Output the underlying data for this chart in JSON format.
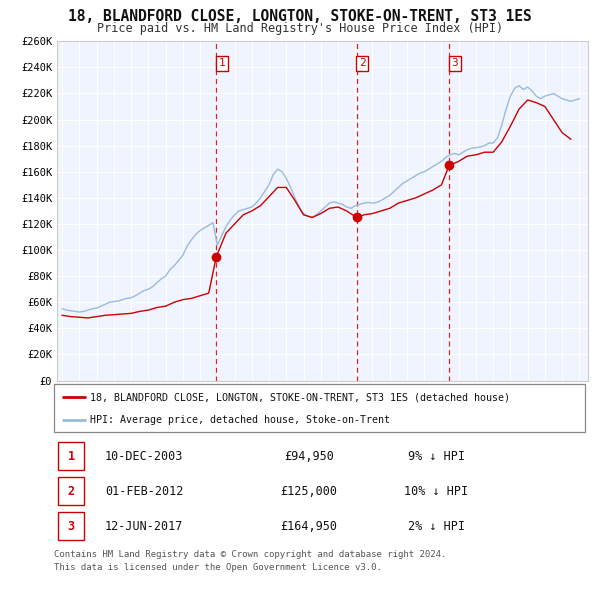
{
  "title": "18, BLANDFORD CLOSE, LONGTON, STOKE-ON-TRENT, ST3 1ES",
  "subtitle": "Price paid vs. HM Land Registry's House Price Index (HPI)",
  "plot_bg": "#f0f4ff",
  "grid_color": "#ffffff",
  "red_line_color": "#cc0000",
  "blue_line_color": "#99bbdd",
  "ylim": [
    0,
    260000
  ],
  "yticks": [
    0,
    20000,
    40000,
    60000,
    80000,
    100000,
    120000,
    140000,
    160000,
    180000,
    200000,
    220000,
    240000,
    260000
  ],
  "ytick_labels": [
    "£0",
    "£20K",
    "£40K",
    "£60K",
    "£80K",
    "£100K",
    "£120K",
    "£140K",
    "£160K",
    "£180K",
    "£200K",
    "£220K",
    "£240K",
    "£260K"
  ],
  "xmin": 1994.7,
  "xmax": 2025.5,
  "xticks": [
    1995,
    1996,
    1997,
    1998,
    1999,
    2000,
    2001,
    2002,
    2003,
    2004,
    2005,
    2006,
    2007,
    2008,
    2009,
    2010,
    2011,
    2012,
    2013,
    2014,
    2015,
    2016,
    2017,
    2018,
    2019,
    2020,
    2021,
    2022,
    2023,
    2024,
    2025
  ],
  "sale_dates": [
    2003.94,
    2012.08,
    2017.45
  ],
  "sale_prices": [
    94950,
    125000,
    164950
  ],
  "sale_labels": [
    "1",
    "2",
    "3"
  ],
  "vline_dates": [
    2003.94,
    2012.08,
    2017.45
  ],
  "legend_red": "18, BLANDFORD CLOSE, LONGTON, STOKE-ON-TRENT, ST3 1ES (detached house)",
  "legend_blue": "HPI: Average price, detached house, Stoke-on-Trent",
  "table_rows": [
    {
      "num": "1",
      "date": "10-DEC-2003",
      "price": "£94,950",
      "pct": "9% ↓ HPI"
    },
    {
      "num": "2",
      "date": "01-FEB-2012",
      "price": "£125,000",
      "pct": "10% ↓ HPI"
    },
    {
      "num": "3",
      "date": "12-JUN-2017",
      "price": "£164,950",
      "pct": "2% ↓ HPI"
    }
  ],
  "footer1": "Contains HM Land Registry data © Crown copyright and database right 2024.",
  "footer2": "This data is licensed under the Open Government Licence v3.0.",
  "hpi_x": [
    1995.0,
    1995.25,
    1995.5,
    1995.75,
    1996.0,
    1996.25,
    1996.5,
    1996.75,
    1997.0,
    1997.25,
    1997.5,
    1997.75,
    1998.0,
    1998.25,
    1998.5,
    1998.75,
    1999.0,
    1999.25,
    1999.5,
    1999.75,
    2000.0,
    2000.25,
    2000.5,
    2000.75,
    2001.0,
    2001.25,
    2001.5,
    2001.75,
    2002.0,
    2002.25,
    2002.5,
    2002.75,
    2003.0,
    2003.25,
    2003.5,
    2003.75,
    2004.0,
    2004.25,
    2004.5,
    2004.75,
    2005.0,
    2005.25,
    2005.5,
    2005.75,
    2006.0,
    2006.25,
    2006.5,
    2006.75,
    2007.0,
    2007.25,
    2007.5,
    2007.75,
    2008.0,
    2008.25,
    2008.5,
    2008.75,
    2009.0,
    2009.25,
    2009.5,
    2009.75,
    2010.0,
    2010.25,
    2010.5,
    2010.75,
    2011.0,
    2011.25,
    2011.5,
    2011.75,
    2012.0,
    2012.25,
    2012.5,
    2012.75,
    2013.0,
    2013.25,
    2013.5,
    2013.75,
    2014.0,
    2014.25,
    2014.5,
    2014.75,
    2015.0,
    2015.25,
    2015.5,
    2015.75,
    2016.0,
    2016.25,
    2016.5,
    2016.75,
    2017.0,
    2017.25,
    2017.5,
    2017.75,
    2018.0,
    2018.25,
    2018.5,
    2018.75,
    2019.0,
    2019.25,
    2019.5,
    2019.75,
    2020.0,
    2020.25,
    2020.5,
    2020.75,
    2021.0,
    2021.25,
    2021.5,
    2021.75,
    2022.0,
    2022.25,
    2022.5,
    2022.75,
    2023.0,
    2023.25,
    2023.5,
    2023.75,
    2024.0,
    2024.25,
    2024.5,
    2024.75,
    2025.0
  ],
  "hpi_y": [
    55000,
    54000,
    53500,
    53000,
    52500,
    53000,
    54000,
    55000,
    55500,
    57000,
    58500,
    60000,
    60500,
    61000,
    62000,
    63000,
    63500,
    65000,
    67000,
    69000,
    70000,
    72000,
    75000,
    78000,
    80000,
    85000,
    88000,
    92000,
    96000,
    103000,
    108000,
    112000,
    115000,
    117000,
    119000,
    121000,
    103800,
    111000,
    118000,
    123000,
    127000,
    130000,
    131000,
    132000,
    133000,
    136000,
    140000,
    145000,
    150000,
    158000,
    162000,
    160000,
    155000,
    148000,
    140000,
    133000,
    128000,
    126000,
    125000,
    127000,
    130000,
    133000,
    136000,
    137000,
    136000,
    135000,
    133000,
    132000,
    134000,
    135000,
    136000,
    136500,
    136000,
    136500,
    138000,
    140000,
    142000,
    145000,
    148000,
    151000,
    153000,
    155000,
    157000,
    159000,
    160000,
    162000,
    164000,
    166000,
    168000,
    171000,
    173000,
    174000,
    173000,
    175000,
    177000,
    178000,
    178500,
    179000,
    180000,
    182000,
    182000,
    186000,
    196000,
    208000,
    218000,
    224000,
    226000,
    223000,
    225000,
    222000,
    218000,
    216000,
    218000,
    219000,
    220000,
    218000,
    216000,
    215000,
    214000,
    215000,
    216000
  ],
  "red_x": [
    1995.0,
    1995.5,
    1996.0,
    1996.5,
    1997.0,
    1997.5,
    1998.0,
    1998.5,
    1999.0,
    1999.5,
    2000.0,
    2000.5,
    2001.0,
    2001.5,
    2002.0,
    2002.5,
    2003.0,
    2003.5,
    2003.94,
    2004.5,
    2005.0,
    2005.5,
    2006.0,
    2006.5,
    2007.0,
    2007.5,
    2008.0,
    2008.5,
    2009.0,
    2009.5,
    2010.0,
    2010.5,
    2011.0,
    2011.5,
    2012.08,
    2012.5,
    2013.0,
    2013.5,
    2014.0,
    2014.5,
    2015.0,
    2015.5,
    2016.0,
    2016.5,
    2017.0,
    2017.45,
    2018.0,
    2018.5,
    2019.0,
    2019.5,
    2020.0,
    2020.5,
    2021.0,
    2021.5,
    2022.0,
    2022.5,
    2023.0,
    2023.5,
    2024.0,
    2024.5
  ],
  "red_y": [
    50000,
    49000,
    48500,
    48000,
    49000,
    50000,
    50500,
    51000,
    51500,
    53000,
    54000,
    56000,
    57000,
    60000,
    62000,
    63000,
    65000,
    67000,
    94950,
    113000,
    120000,
    127000,
    130000,
    134000,
    141000,
    148000,
    148000,
    138000,
    127000,
    125000,
    128000,
    132000,
    133000,
    130000,
    125000,
    127000,
    128000,
    130000,
    132000,
    136000,
    138000,
    140000,
    143000,
    146000,
    150000,
    164950,
    168000,
    172000,
    173000,
    175000,
    175000,
    183000,
    195000,
    208000,
    215000,
    213000,
    210000,
    200000,
    190000,
    185000
  ]
}
